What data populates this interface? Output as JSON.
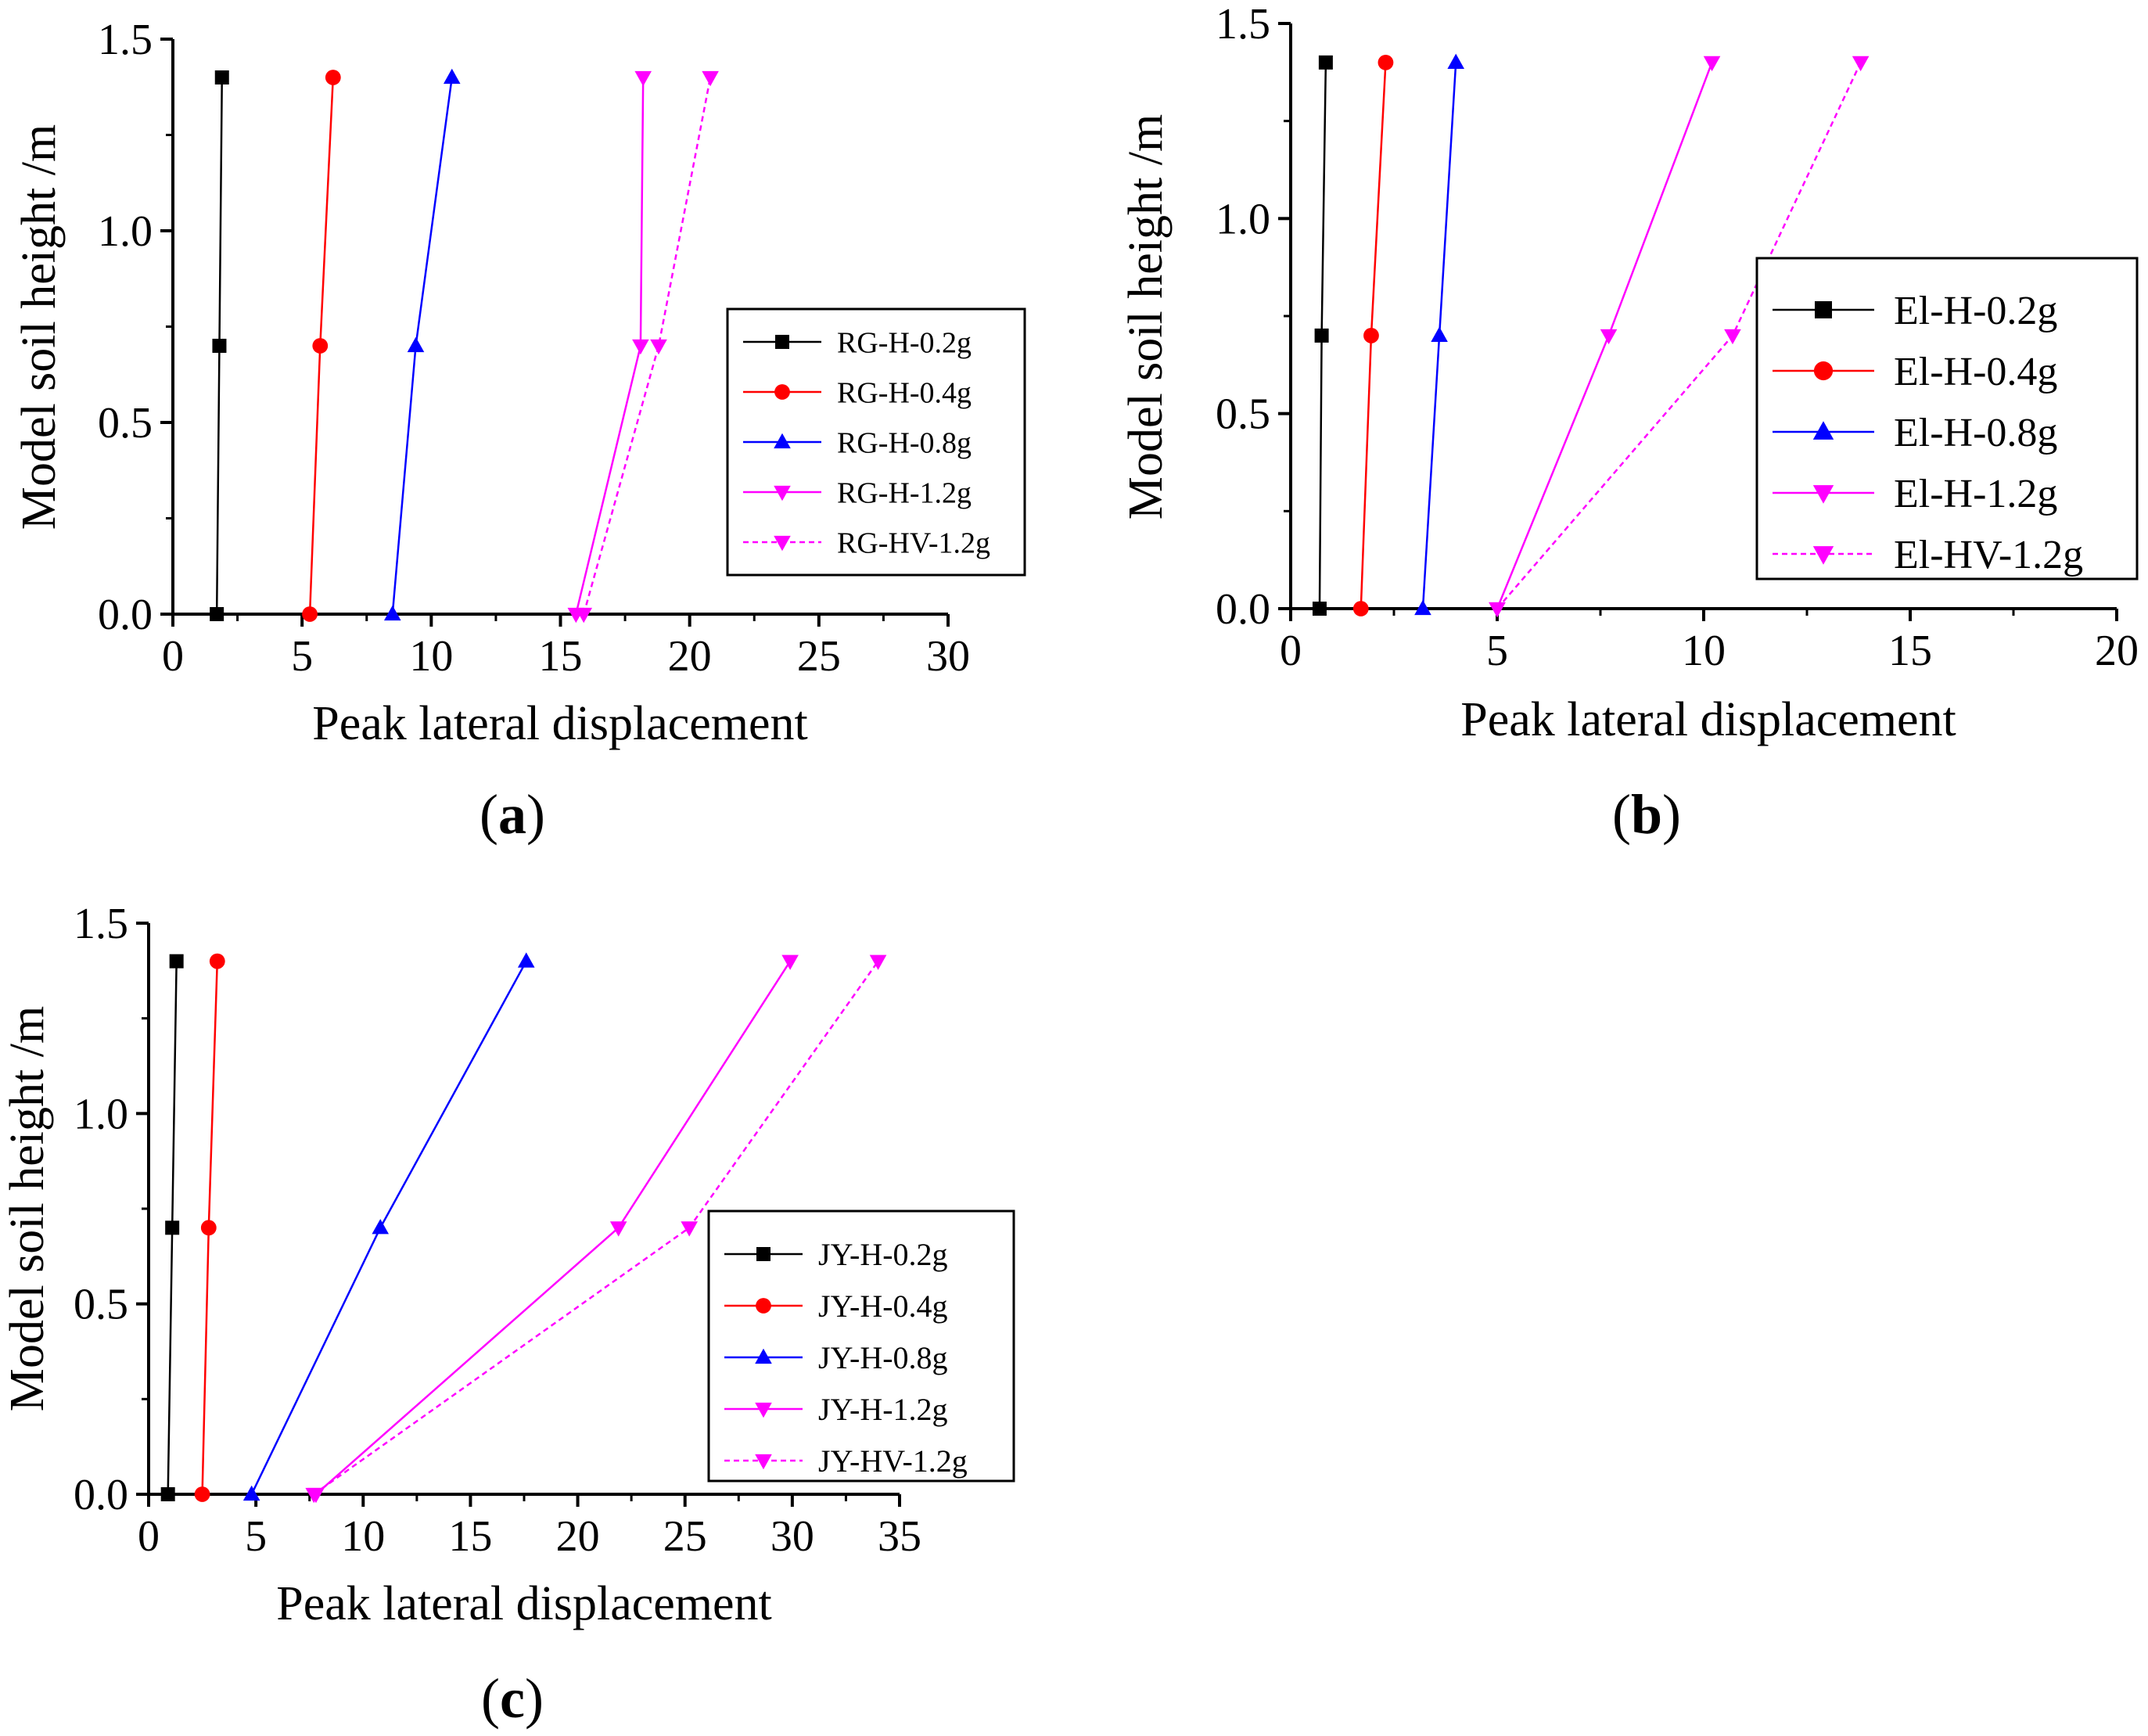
{
  "chart_data": [
    {
      "type": "line",
      "panel_label": "a",
      "xlabel": "Peak lateral displacement",
      "ylabel": "Model soil height /m",
      "xlim": [
        0,
        30
      ],
      "ylim": [
        0.0,
        1.5
      ],
      "xticks": [
        "0",
        "5",
        "10",
        "15",
        "20",
        "25",
        "30"
      ],
      "yticks": [
        "0.0",
        "0.5",
        "1.0",
        "1.5"
      ],
      "legend_position": "right",
      "series": [
        {
          "name": "RG-H-0.2g",
          "color": "#000000",
          "marker": "square",
          "dash": false,
          "x": [
            1.7,
            1.8,
            1.9
          ],
          "y": [
            0.0,
            0.7,
            1.4
          ]
        },
        {
          "name": "RG-H-0.4g",
          "color": "#ff0000",
          "marker": "circle",
          "dash": false,
          "x": [
            5.3,
            5.7,
            6.2
          ],
          "y": [
            0.0,
            0.7,
            1.4
          ]
        },
        {
          "name": "RG-H-0.8g",
          "color": "#0000ff",
          "marker": "triangle-up",
          "dash": false,
          "x": [
            8.5,
            9.4,
            10.8
          ],
          "y": [
            0.0,
            0.7,
            1.4
          ]
        },
        {
          "name": "RG-H-1.2g",
          "color": "#ff00ff",
          "marker": "triangle-down",
          "dash": false,
          "x": [
            15.6,
            18.1,
            18.2
          ],
          "y": [
            0.0,
            0.7,
            1.4
          ]
        },
        {
          "name": "RG-HV-1.2g",
          "color": "#ff00ff",
          "marker": "triangle-down",
          "dash": true,
          "x": [
            15.9,
            18.8,
            20.8
          ],
          "y": [
            0.0,
            0.7,
            1.4
          ]
        }
      ]
    },
    {
      "type": "line",
      "panel_label": "b",
      "xlabel": "Peak lateral displacement",
      "ylabel": "Model soil height /m",
      "xlim": [
        0,
        20
      ],
      "ylim": [
        0.0,
        1.5
      ],
      "xticks": [
        "0",
        "5",
        "10",
        "15",
        "20"
      ],
      "yticks": [
        "0.0",
        "0.5",
        "1.0",
        "1.5"
      ],
      "legend_position": "right",
      "series": [
        {
          "name": "El-H-0.2g",
          "color": "#000000",
          "marker": "square",
          "dash": false,
          "x": [
            0.7,
            0.75,
            0.85
          ],
          "y": [
            0.0,
            0.7,
            1.4
          ]
        },
        {
          "name": "El-H-0.4g",
          "color": "#ff0000",
          "marker": "circle",
          "dash": false,
          "x": [
            1.7,
            1.95,
            2.3
          ],
          "y": [
            0.0,
            0.7,
            1.4
          ]
        },
        {
          "name": "El-H-0.8g",
          "color": "#0000ff",
          "marker": "triangle-up",
          "dash": false,
          "x": [
            3.2,
            3.6,
            4.0
          ],
          "y": [
            0.0,
            0.7,
            1.4
          ]
        },
        {
          "name": "El-H-1.2g",
          "color": "#ff00ff",
          "marker": "triangle-down",
          "dash": false,
          "x": [
            5.0,
            7.7,
            10.2
          ],
          "y": [
            0.0,
            0.7,
            1.4
          ]
        },
        {
          "name": "El-HV-1.2g",
          "color": "#ff00ff",
          "marker": "triangle-down",
          "dash": true,
          "x": [
            5.0,
            10.7,
            13.8
          ],
          "y": [
            0.0,
            0.7,
            1.4
          ]
        }
      ]
    },
    {
      "type": "line",
      "panel_label": "c",
      "xlabel": "Peak lateral displacement",
      "ylabel": "Model soil height /m",
      "xlim": [
        0,
        35
      ],
      "ylim": [
        0.0,
        1.5
      ],
      "xticks": [
        "0",
        "5",
        "10",
        "15",
        "20",
        "25",
        "30",
        "35"
      ],
      "yticks": [
        "0.0",
        "0.5",
        "1.0",
        "1.5"
      ],
      "legend_position": "right",
      "series": [
        {
          "name": "JY-H-0.2g",
          "color": "#000000",
          "marker": "square",
          "dash": false,
          "x": [
            0.9,
            1.1,
            1.3
          ],
          "y": [
            0.0,
            0.7,
            1.4
          ]
        },
        {
          "name": "JY-H-0.4g",
          "color": "#ff0000",
          "marker": "circle",
          "dash": false,
          "x": [
            2.5,
            2.8,
            3.2
          ],
          "y": [
            0.0,
            0.7,
            1.4
          ]
        },
        {
          "name": "JY-H-0.8g",
          "color": "#0000ff",
          "marker": "triangle-up",
          "dash": false,
          "x": [
            4.8,
            10.8,
            17.6
          ],
          "y": [
            0.0,
            0.7,
            1.4
          ]
        },
        {
          "name": "JY-H-1.2g",
          "color": "#ff00ff",
          "marker": "triangle-down",
          "dash": false,
          "x": [
            7.8,
            21.9,
            29.9
          ],
          "y": [
            0.0,
            0.7,
            1.4
          ]
        },
        {
          "name": "JY-HV-1.2g",
          "color": "#ff00ff",
          "marker": "triangle-down",
          "dash": true,
          "x": [
            7.7,
            25.2,
            34.0
          ],
          "y": [
            0.0,
            0.7,
            1.4
          ]
        }
      ]
    }
  ]
}
